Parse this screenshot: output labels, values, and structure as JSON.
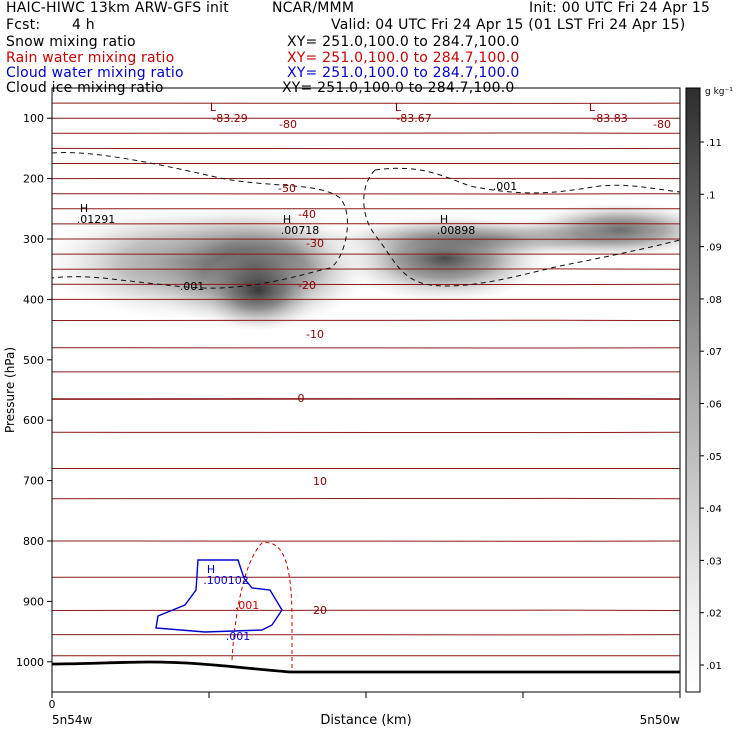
{
  "header": {
    "title": "HAIC-HIWC 13km ARW-GFS init",
    "org": "NCAR/MMM",
    "init": "Init: 00 UTC Fri 24 Apr 15",
    "fcst_label": "Fcst:",
    "fcst_value": "4 h",
    "valid": "Valid: 04 UTC Fri 24 Apr 15 (01 LST Fri 24 Apr 15)"
  },
  "fields": [
    {
      "name": "Snow mixing ratio",
      "xy": "XY= 251.0,100.0 to 284.7,100.0",
      "color": "#000000"
    },
    {
      "name": "Rain water mixing ratio",
      "xy": "XY= 251.0,100.0 to 284.7,100.0",
      "color": "#cc0000"
    },
    {
      "name": "Cloud water mixing ratio",
      "xy": "XY= 251.0,100.0 to 284.7,100.0",
      "color": "#0000cc"
    },
    {
      "name": "Cloud ice mixing ratio",
      "xy": "XY= 251.0,100.0 to 284.7,100.0",
      "color": "#000000"
    }
  ],
  "chart_data": {
    "type": "heatmap",
    "xlabel": "Distance (km)",
    "ylabel": "Pressure (hPa)",
    "x_origin_tick": "0",
    "x_left_label": "5n54w",
    "x_right_label": "5n50w",
    "y_ticks": [
      "100",
      "200",
      "300",
      "400",
      "500",
      "600",
      "700",
      "800",
      "900",
      "1000"
    ],
    "y_axis": {
      "min": 50,
      "max": 1050
    },
    "colorbar": {
      "unit": "g kg⁻¹",
      "ticks": [
        ".01",
        ".02",
        ".03",
        ".04",
        ".05",
        ".06",
        ".07",
        ".08",
        ".09",
        ".1",
        ".11"
      ]
    },
    "snow_maxima": [
      {
        "label": "H",
        "value": ".01291"
      },
      {
        "label": "H",
        "value": ".00718"
      },
      {
        "label": "H",
        "value": ".00898"
      }
    ],
    "temperature_minima": [
      {
        "label": "L",
        "value": "-83.29"
      },
      {
        "label": "L",
        "value": "-83.67"
      },
      {
        "label": "L",
        "value": "-83.83"
      }
    ],
    "temperature_contour_labels": [
      "-80",
      "-80",
      "-50",
      "-40",
      "-30",
      "-20",
      "-10",
      "0",
      "10",
      "20"
    ],
    "ice_contour_labels": [
      ".001",
      ".001"
    ],
    "rain_contour_label": ".001",
    "cloud_water_maximum": {
      "label": "H",
      "value": ".100102"
    },
    "cloud_water_contour_label": ".001"
  }
}
